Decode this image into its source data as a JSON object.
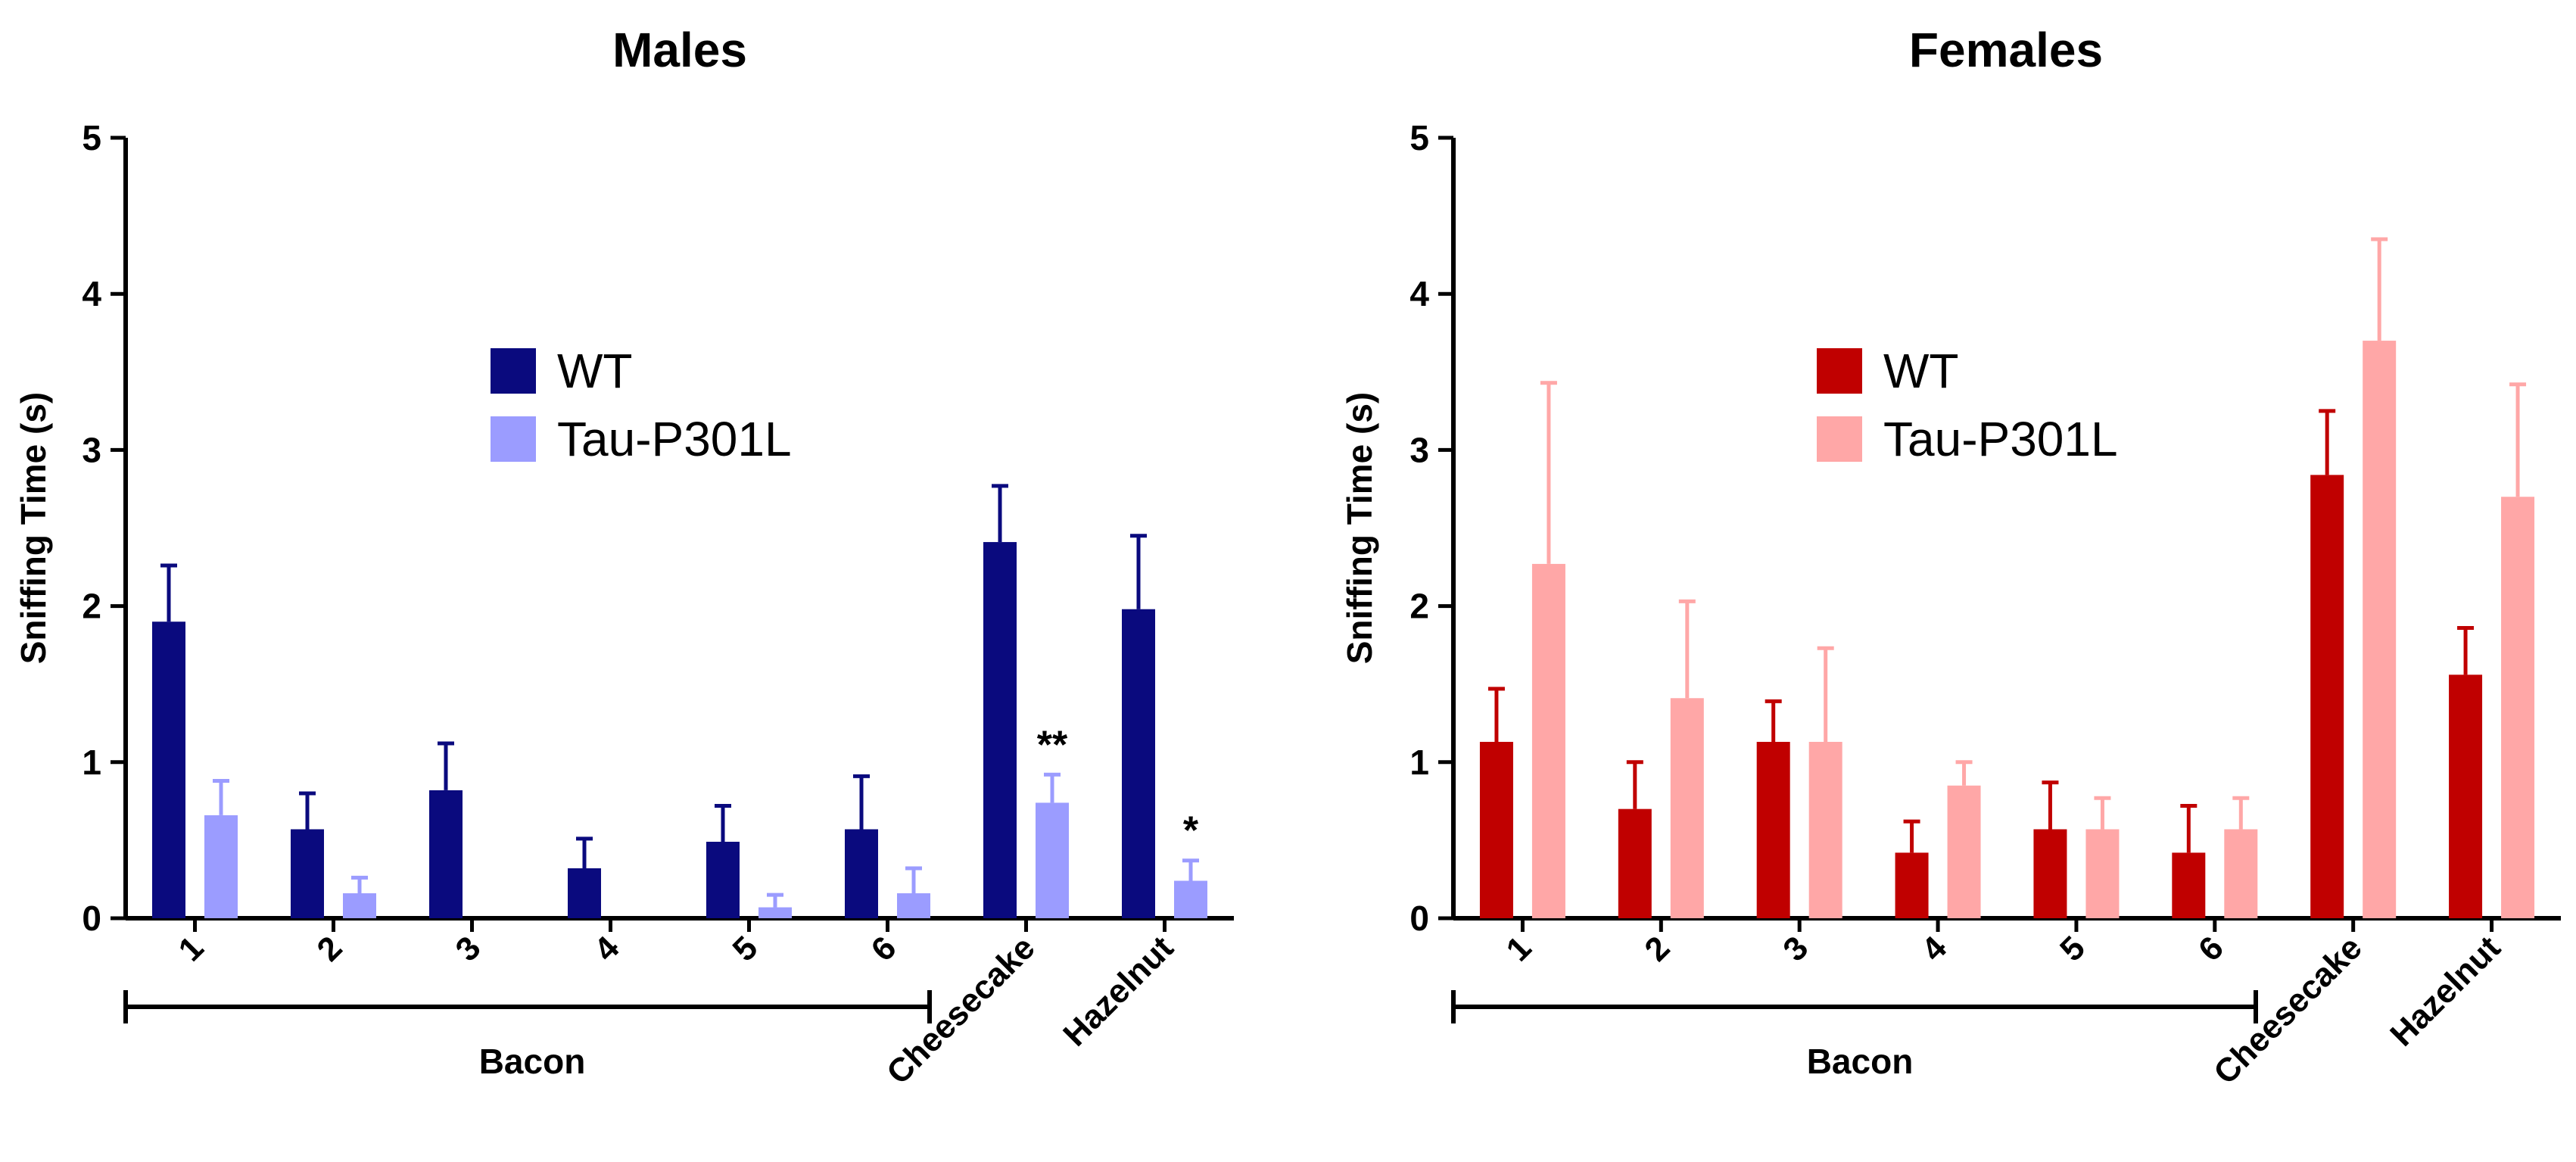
{
  "chart_data": [
    {
      "type": "bar",
      "title": "Males",
      "ylabel": "Sniffing Time (s)",
      "xlabel": "",
      "ylim": [
        0,
        5
      ],
      "yticks": [
        "0",
        "1",
        "2",
        "3",
        "4",
        "5"
      ],
      "categories": [
        "1",
        "2",
        "3",
        "4",
        "5",
        "6",
        "Cheesecake",
        "Hazelnut"
      ],
      "group_label": "Bacon",
      "legend_position": "upper-center",
      "series": [
        {
          "name": "WT",
          "color": "#0a0a7e",
          "values": [
            1.9,
            0.57,
            0.82,
            0.32,
            0.49,
            0.57,
            2.41,
            1.98
          ],
          "errors": [
            0.36,
            0.23,
            0.3,
            0.19,
            0.23,
            0.34,
            0.36,
            0.47
          ]
        },
        {
          "name": "Tau-P301L",
          "color": "#9b9cff",
          "values": [
            0.66,
            0.16,
            0,
            0,
            0.07,
            0.16,
            0.74,
            0.24
          ],
          "errors": [
            0.22,
            0.1,
            0,
            0,
            0.08,
            0.16,
            0.18,
            0.13
          ]
        }
      ],
      "annotations": [
        {
          "category": "Cheesecake",
          "series": "Tau-P301L",
          "text": "**"
        },
        {
          "category": "Hazelnut",
          "series": "Tau-P301L",
          "text": "*"
        }
      ]
    },
    {
      "type": "bar",
      "title": "Females",
      "ylabel": "Sniffing Time (s)",
      "xlabel": "",
      "ylim": [
        0,
        5
      ],
      "yticks": [
        "0",
        "1",
        "2",
        "3",
        "4",
        "5"
      ],
      "categories": [
        "1",
        "2",
        "3",
        "4",
        "5",
        "6",
        "Cheesecake",
        "Hazelnut"
      ],
      "group_label": "Bacon",
      "legend_position": "upper-center",
      "series": [
        {
          "name": "WT",
          "color": "#c00000",
          "values": [
            1.13,
            0.7,
            1.13,
            0.42,
            0.57,
            0.42,
            2.84,
            1.56
          ],
          "errors": [
            0.34,
            0.3,
            0.26,
            0.2,
            0.3,
            0.3,
            0.41,
            0.3
          ]
        },
        {
          "name": "Tau-P301L",
          "color": "#ffa7a7",
          "values": [
            2.27,
            1.41,
            1.13,
            0.85,
            0.57,
            0.57,
            3.7,
            2.7
          ],
          "errors": [
            1.16,
            0.62,
            0.6,
            0.15,
            0.2,
            0.2,
            0.65,
            0.72
          ]
        }
      ],
      "annotations": []
    }
  ]
}
